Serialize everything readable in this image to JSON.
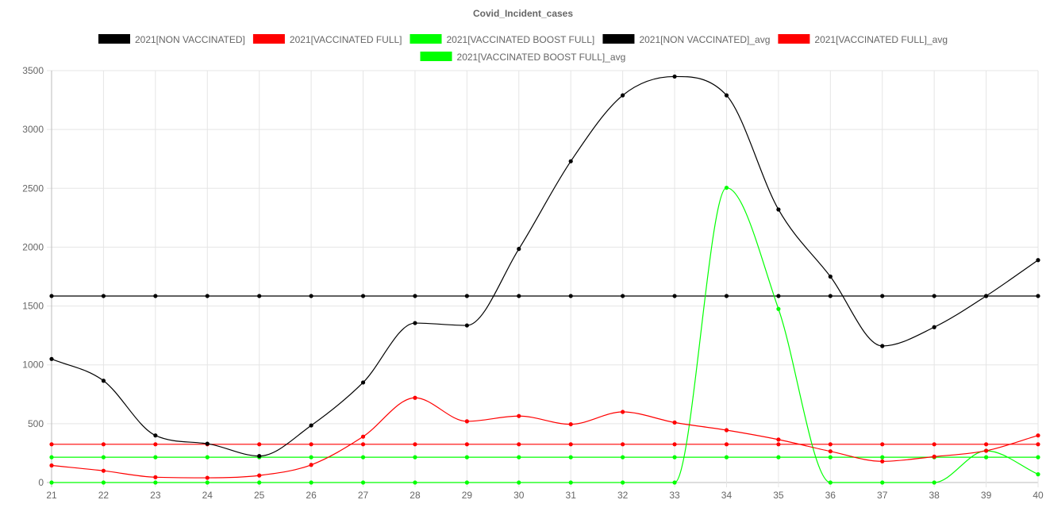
{
  "chart_data": {
    "type": "line",
    "title": "Covid_Incident_cases",
    "xlabel": "",
    "ylabel": "",
    "categories": [
      "21",
      "22",
      "23",
      "24",
      "25",
      "26",
      "27",
      "28",
      "29",
      "30",
      "31",
      "32",
      "33",
      "34",
      "35",
      "36",
      "37",
      "38",
      "39",
      "40"
    ],
    "ylim": [
      0,
      3500
    ],
    "yticks": [
      0,
      500,
      1000,
      1500,
      2000,
      2500,
      3000,
      3500
    ],
    "grid": true,
    "legend_position": "top",
    "series": [
      {
        "name": "2021[NON VACCINATED]",
        "color": "#000000",
        "values": [
          1050,
          865,
          400,
          330,
          225,
          485,
          850,
          1355,
          1335,
          1985,
          2730,
          3290,
          3450,
          3290,
          2320,
          1750,
          1160,
          1320,
          1585,
          1890
        ]
      },
      {
        "name": "2021[VACCINATED FULL]",
        "color": "#ff0000",
        "values": [
          145,
          100,
          45,
          40,
          60,
          150,
          390,
          720,
          520,
          565,
          495,
          600,
          510,
          445,
          365,
          265,
          180,
          220,
          270,
          400
        ]
      },
      {
        "name": "2021[VACCINATED BOOST FULL]",
        "color": "#00ff00",
        "values": [
          0,
          0,
          0,
          0,
          0,
          0,
          0,
          0,
          0,
          0,
          0,
          0,
          0,
          2505,
          1475,
          0,
          0,
          0,
          270,
          70
        ]
      },
      {
        "name": "2021[NON VACCINATED]_avg",
        "color": "#000000",
        "values": [
          1585,
          1585,
          1585,
          1585,
          1585,
          1585,
          1585,
          1585,
          1585,
          1585,
          1585,
          1585,
          1585,
          1585,
          1585,
          1585,
          1585,
          1585,
          1585,
          1585
        ]
      },
      {
        "name": "2021[VACCINATED FULL]_avg",
        "color": "#ff0000",
        "values": [
          325,
          325,
          325,
          325,
          325,
          325,
          325,
          325,
          325,
          325,
          325,
          325,
          325,
          325,
          325,
          325,
          325,
          325,
          325,
          325
        ]
      },
      {
        "name": "2021[VACCINATED BOOST FULL]_avg",
        "color": "#00ff00",
        "values": [
          215,
          215,
          215,
          215,
          215,
          215,
          215,
          215,
          215,
          215,
          215,
          215,
          215,
          215,
          215,
          215,
          215,
          215,
          215,
          215
        ]
      }
    ]
  }
}
